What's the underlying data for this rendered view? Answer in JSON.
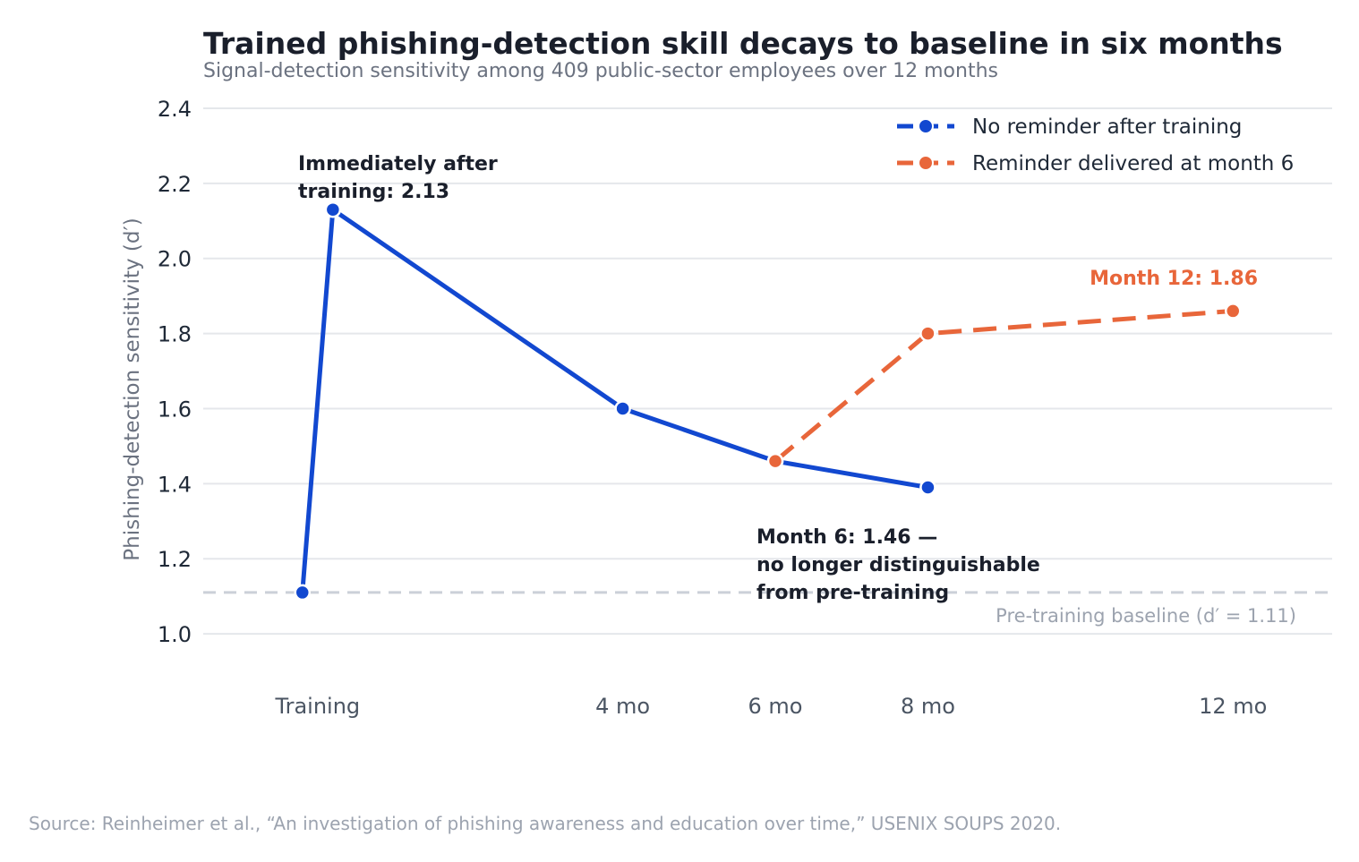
{
  "chart_data": {
    "type": "line",
    "title": "Trained phishing-detection skill decays to baseline in six months",
    "subtitle": "Signal-detection sensitivity among 409 public-sector employees over 12 months",
    "ylabel": "Phishing-detection sensitivity (d′)",
    "xlabel": "",
    "ylim": [
      0.9,
      2.45
    ],
    "xlim": [
      -1.5,
      13.3
    ],
    "yticks": [
      1.0,
      1.2,
      1.4,
      1.6,
      1.8,
      2.0,
      2.2,
      2.4
    ],
    "xticks": [
      {
        "x": 0,
        "label": "Training"
      },
      {
        "x": 4,
        "label": "4 mo"
      },
      {
        "x": 6,
        "label": "6 mo"
      },
      {
        "x": 8,
        "label": "8 mo"
      },
      {
        "x": 12,
        "label": "12 mo"
      }
    ],
    "grid": true,
    "legend_position": "top-right",
    "series": [
      {
        "name": "No reminder after training",
        "color": "#1248d0",
        "style": "solid",
        "points": [
          {
            "x": -0.2,
            "y": 1.11
          },
          {
            "x": 0.2,
            "y": 2.13
          },
          {
            "x": 4,
            "y": 1.6
          },
          {
            "x": 6,
            "y": 1.46
          },
          {
            "x": 8,
            "y": 1.39
          }
        ]
      },
      {
        "name": "Reminder delivered at month 6",
        "color": "#e8663a",
        "style": "dashed",
        "points": [
          {
            "x": 6,
            "y": 1.46
          },
          {
            "x": 8,
            "y": 1.8
          },
          {
            "x": 12,
            "y": 1.86
          }
        ]
      }
    ],
    "baseline": {
      "y": 1.11,
      "label": "Pre-training baseline (d′ = 1.11)"
    },
    "annotations": [
      {
        "lines": [
          "Immediately after",
          "training: 2.13"
        ],
        "style": "dark"
      },
      {
        "lines": [
          "Month 6: 1.46 —",
          "no longer distinguishable",
          "from pre-training"
        ],
        "style": "dark"
      },
      {
        "lines": [
          "Month 12: 1.86"
        ],
        "style": "orange"
      }
    ]
  },
  "source": "Source: Reinheimer et al., “An investigation of phishing awareness and education over time,” USENIX SOUPS 2020."
}
